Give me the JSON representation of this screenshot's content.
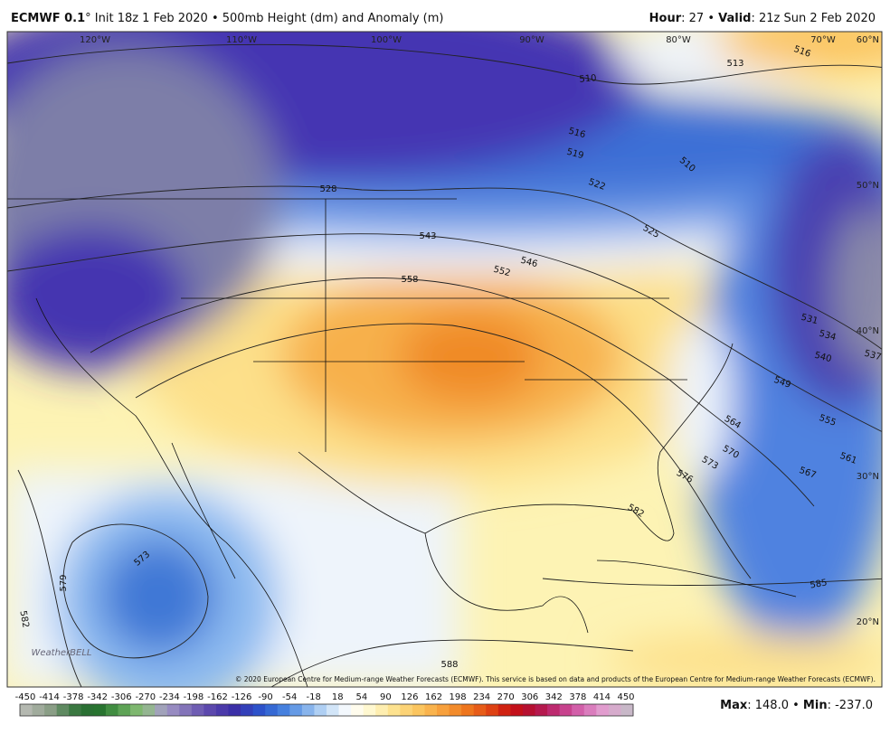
{
  "header": {
    "model": "ECMWF 0.1",
    "title_rest": "° Init 18z 1 Feb 2020 • 500mb Height (dm) and Anomaly (m)",
    "hour_label": "Hour",
    "hour": ": 27 •",
    "valid_label": "Valid",
    "valid": ": 21z Sun 2 Feb 2020"
  },
  "map": {
    "longitudes": [
      "120°W",
      "110°W",
      "100°W",
      "90°W",
      "80°W",
      "70°W"
    ],
    "latitudes": [
      "60°N",
      "50°N",
      "40°N",
      "30°N",
      "20°N"
    ],
    "contour_labels": [
      "510",
      "513",
      "516",
      "516",
      "519",
      "522",
      "525",
      "528",
      "543",
      "546",
      "552",
      "558",
      "510",
      "531",
      "534",
      "537",
      "540",
      "549",
      "555",
      "561",
      "564",
      "567",
      "570",
      "573",
      "576",
      "579",
      "582",
      "573",
      "585",
      "588",
      "582"
    ],
    "credit": "© 2020 European Centre for Medium-range Weather Forecasts (ECMWF). This service is based on data and products of the European Centre for Medium-range Weather Forecasts (ECMWF).",
    "logo": "WeatherBELL"
  },
  "colorbar": {
    "ticks": [
      -450,
      -414,
      -378,
      -342,
      -306,
      -270,
      -234,
      -198,
      -162,
      -126,
      -90,
      -54,
      -18,
      18,
      54,
      90,
      126,
      162,
      198,
      234,
      270,
      306,
      342,
      378,
      414,
      450
    ]
  },
  "footer": {
    "max_label": "Max",
    "max": ": 148.0 •",
    "min_label": "Min",
    "min": ": -237.0"
  }
}
